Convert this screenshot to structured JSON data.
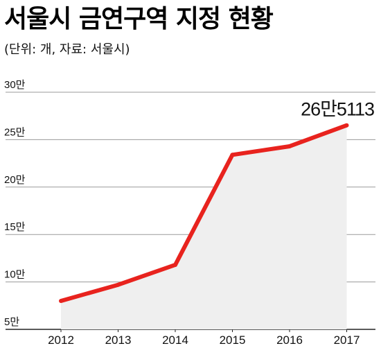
{
  "header": {
    "title": "서울시 금연구역 지정 현황",
    "subtitle": "(단위: 개, 자료: 서울시)"
  },
  "colors": {
    "line": "#e8231e",
    "area": "#efefef",
    "grid": "#9a9a9a"
  },
  "chart_data": {
    "type": "line",
    "title": "서울시 금연구역 지정 현황",
    "subtitle": "(단위: 개, 자료: 서울시)",
    "x": [
      "2012",
      "2013",
      "2014",
      "2015",
      "2016",
      "2017"
    ],
    "y_ticks": [
      5,
      10,
      15,
      20,
      25,
      30
    ],
    "y_tick_labels": [
      "5만",
      "10만",
      "15만",
      "20만",
      "25만",
      "30만"
    ],
    "ylim": [
      5,
      30
    ],
    "grid": true,
    "series": [
      {
        "values": [
          8.0,
          9.7,
          11.8,
          23.4,
          24.3,
          26.5113
        ]
      }
    ],
    "annotation": {
      "text": "26만5113",
      "point_index": 5
    }
  }
}
